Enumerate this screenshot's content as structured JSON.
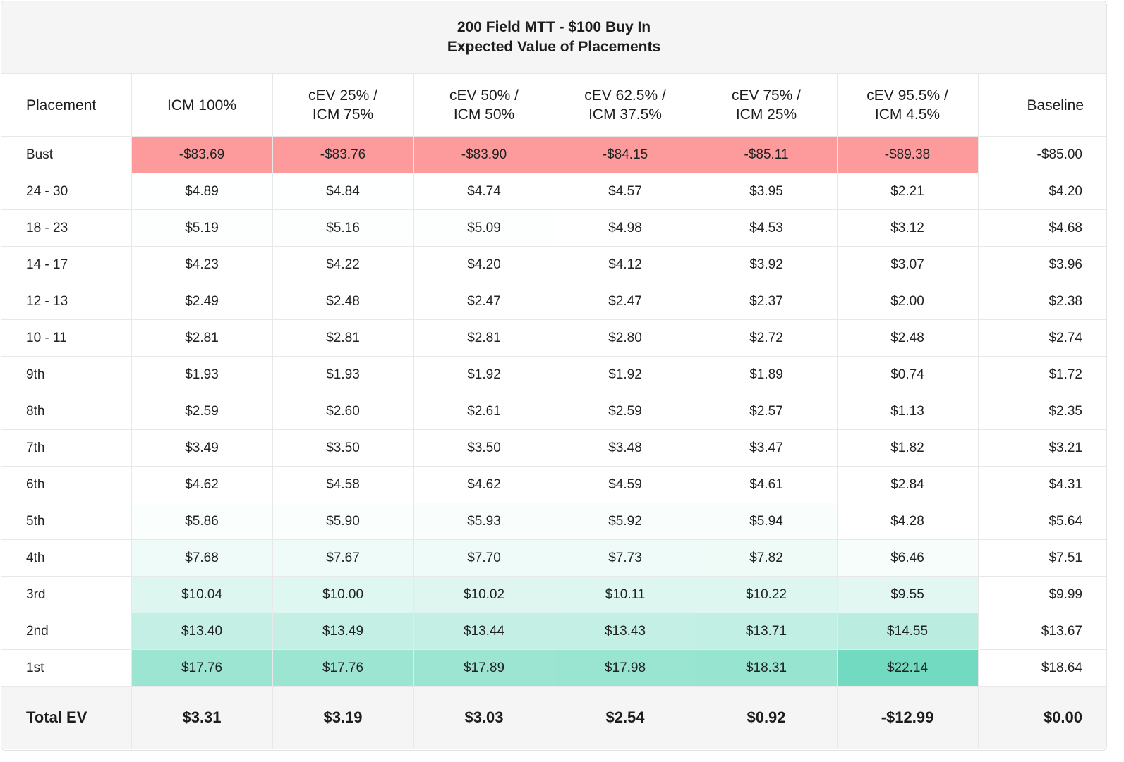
{
  "chart_data": {
    "type": "table",
    "title_lines": [
      "200 Field MTT - $100 Buy In",
      "Expected Value of Placements"
    ],
    "columns": [
      [
        "Placement"
      ],
      [
        "ICM 100%"
      ],
      [
        "cEV 25% /",
        "ICM 75%"
      ],
      [
        "cEV 50% /",
        "ICM 50%"
      ],
      [
        "cEV 62.5% /",
        "ICM 37.5%"
      ],
      [
        "cEV 75% /",
        "ICM 25%"
      ],
      [
        "cEV 95.5% /",
        "ICM 4.5%"
      ],
      [
        "Baseline"
      ]
    ],
    "rows": [
      {
        "label": "Bust",
        "values": [
          "-$83.69",
          "-$83.76",
          "-$83.90",
          "-$84.15",
          "-$85.11",
          "-$89.38",
          "-$85.00"
        ]
      },
      {
        "label": "24 - 30",
        "values": [
          "$4.89",
          "$4.84",
          "$4.74",
          "$4.57",
          "$3.95",
          "$2.21",
          "$4.20"
        ]
      },
      {
        "label": "18 - 23",
        "values": [
          "$5.19",
          "$5.16",
          "$5.09",
          "$4.98",
          "$4.53",
          "$3.12",
          "$4.68"
        ]
      },
      {
        "label": "14 - 17",
        "values": [
          "$4.23",
          "$4.22",
          "$4.20",
          "$4.12",
          "$3.92",
          "$3.07",
          "$3.96"
        ]
      },
      {
        "label": "12 - 13",
        "values": [
          "$2.49",
          "$2.48",
          "$2.47",
          "$2.47",
          "$2.37",
          "$2.00",
          "$2.38"
        ]
      },
      {
        "label": "10 - 11",
        "values": [
          "$2.81",
          "$2.81",
          "$2.81",
          "$2.80",
          "$2.72",
          "$2.48",
          "$2.74"
        ]
      },
      {
        "label": "9th",
        "values": [
          "$1.93",
          "$1.93",
          "$1.92",
          "$1.92",
          "$1.89",
          "$0.74",
          "$1.72"
        ]
      },
      {
        "label": "8th",
        "values": [
          "$2.59",
          "$2.60",
          "$2.61",
          "$2.59",
          "$2.57",
          "$1.13",
          "$2.35"
        ]
      },
      {
        "label": "7th",
        "values": [
          "$3.49",
          "$3.50",
          "$3.50",
          "$3.48",
          "$3.47",
          "$1.82",
          "$3.21"
        ]
      },
      {
        "label": "6th",
        "values": [
          "$4.62",
          "$4.58",
          "$4.62",
          "$4.59",
          "$4.61",
          "$2.84",
          "$4.31"
        ]
      },
      {
        "label": "5th",
        "values": [
          "$5.86",
          "$5.90",
          "$5.93",
          "$5.92",
          "$5.94",
          "$4.28",
          "$5.64"
        ]
      },
      {
        "label": "4th",
        "values": [
          "$7.68",
          "$7.67",
          "$7.70",
          "$7.73",
          "$7.82",
          "$6.46",
          "$7.51"
        ]
      },
      {
        "label": "3rd",
        "values": [
          "$10.04",
          "$10.00",
          "$10.02",
          "$10.11",
          "$10.22",
          "$9.55",
          "$9.99"
        ]
      },
      {
        "label": "2nd",
        "values": [
          "$13.40",
          "$13.49",
          "$13.44",
          "$13.43",
          "$13.71",
          "$14.55",
          "$13.67"
        ]
      },
      {
        "label": "1st",
        "values": [
          "$17.76",
          "$17.76",
          "$17.89",
          "$17.98",
          "$18.31",
          "$22.14",
          "$18.64"
        ]
      }
    ],
    "total": {
      "label": "Total EV",
      "values": [
        "$3.31",
        "$3.19",
        "$3.03",
        "$2.54",
        "$0.92",
        "-$12.99",
        "$0.00"
      ]
    },
    "colors": {
      "negative": "#fd9b9c",
      "positive_scale_low": "#ffffff",
      "positive_scale_high": "#72dac0",
      "header_bg": "#f5f5f5"
    }
  }
}
